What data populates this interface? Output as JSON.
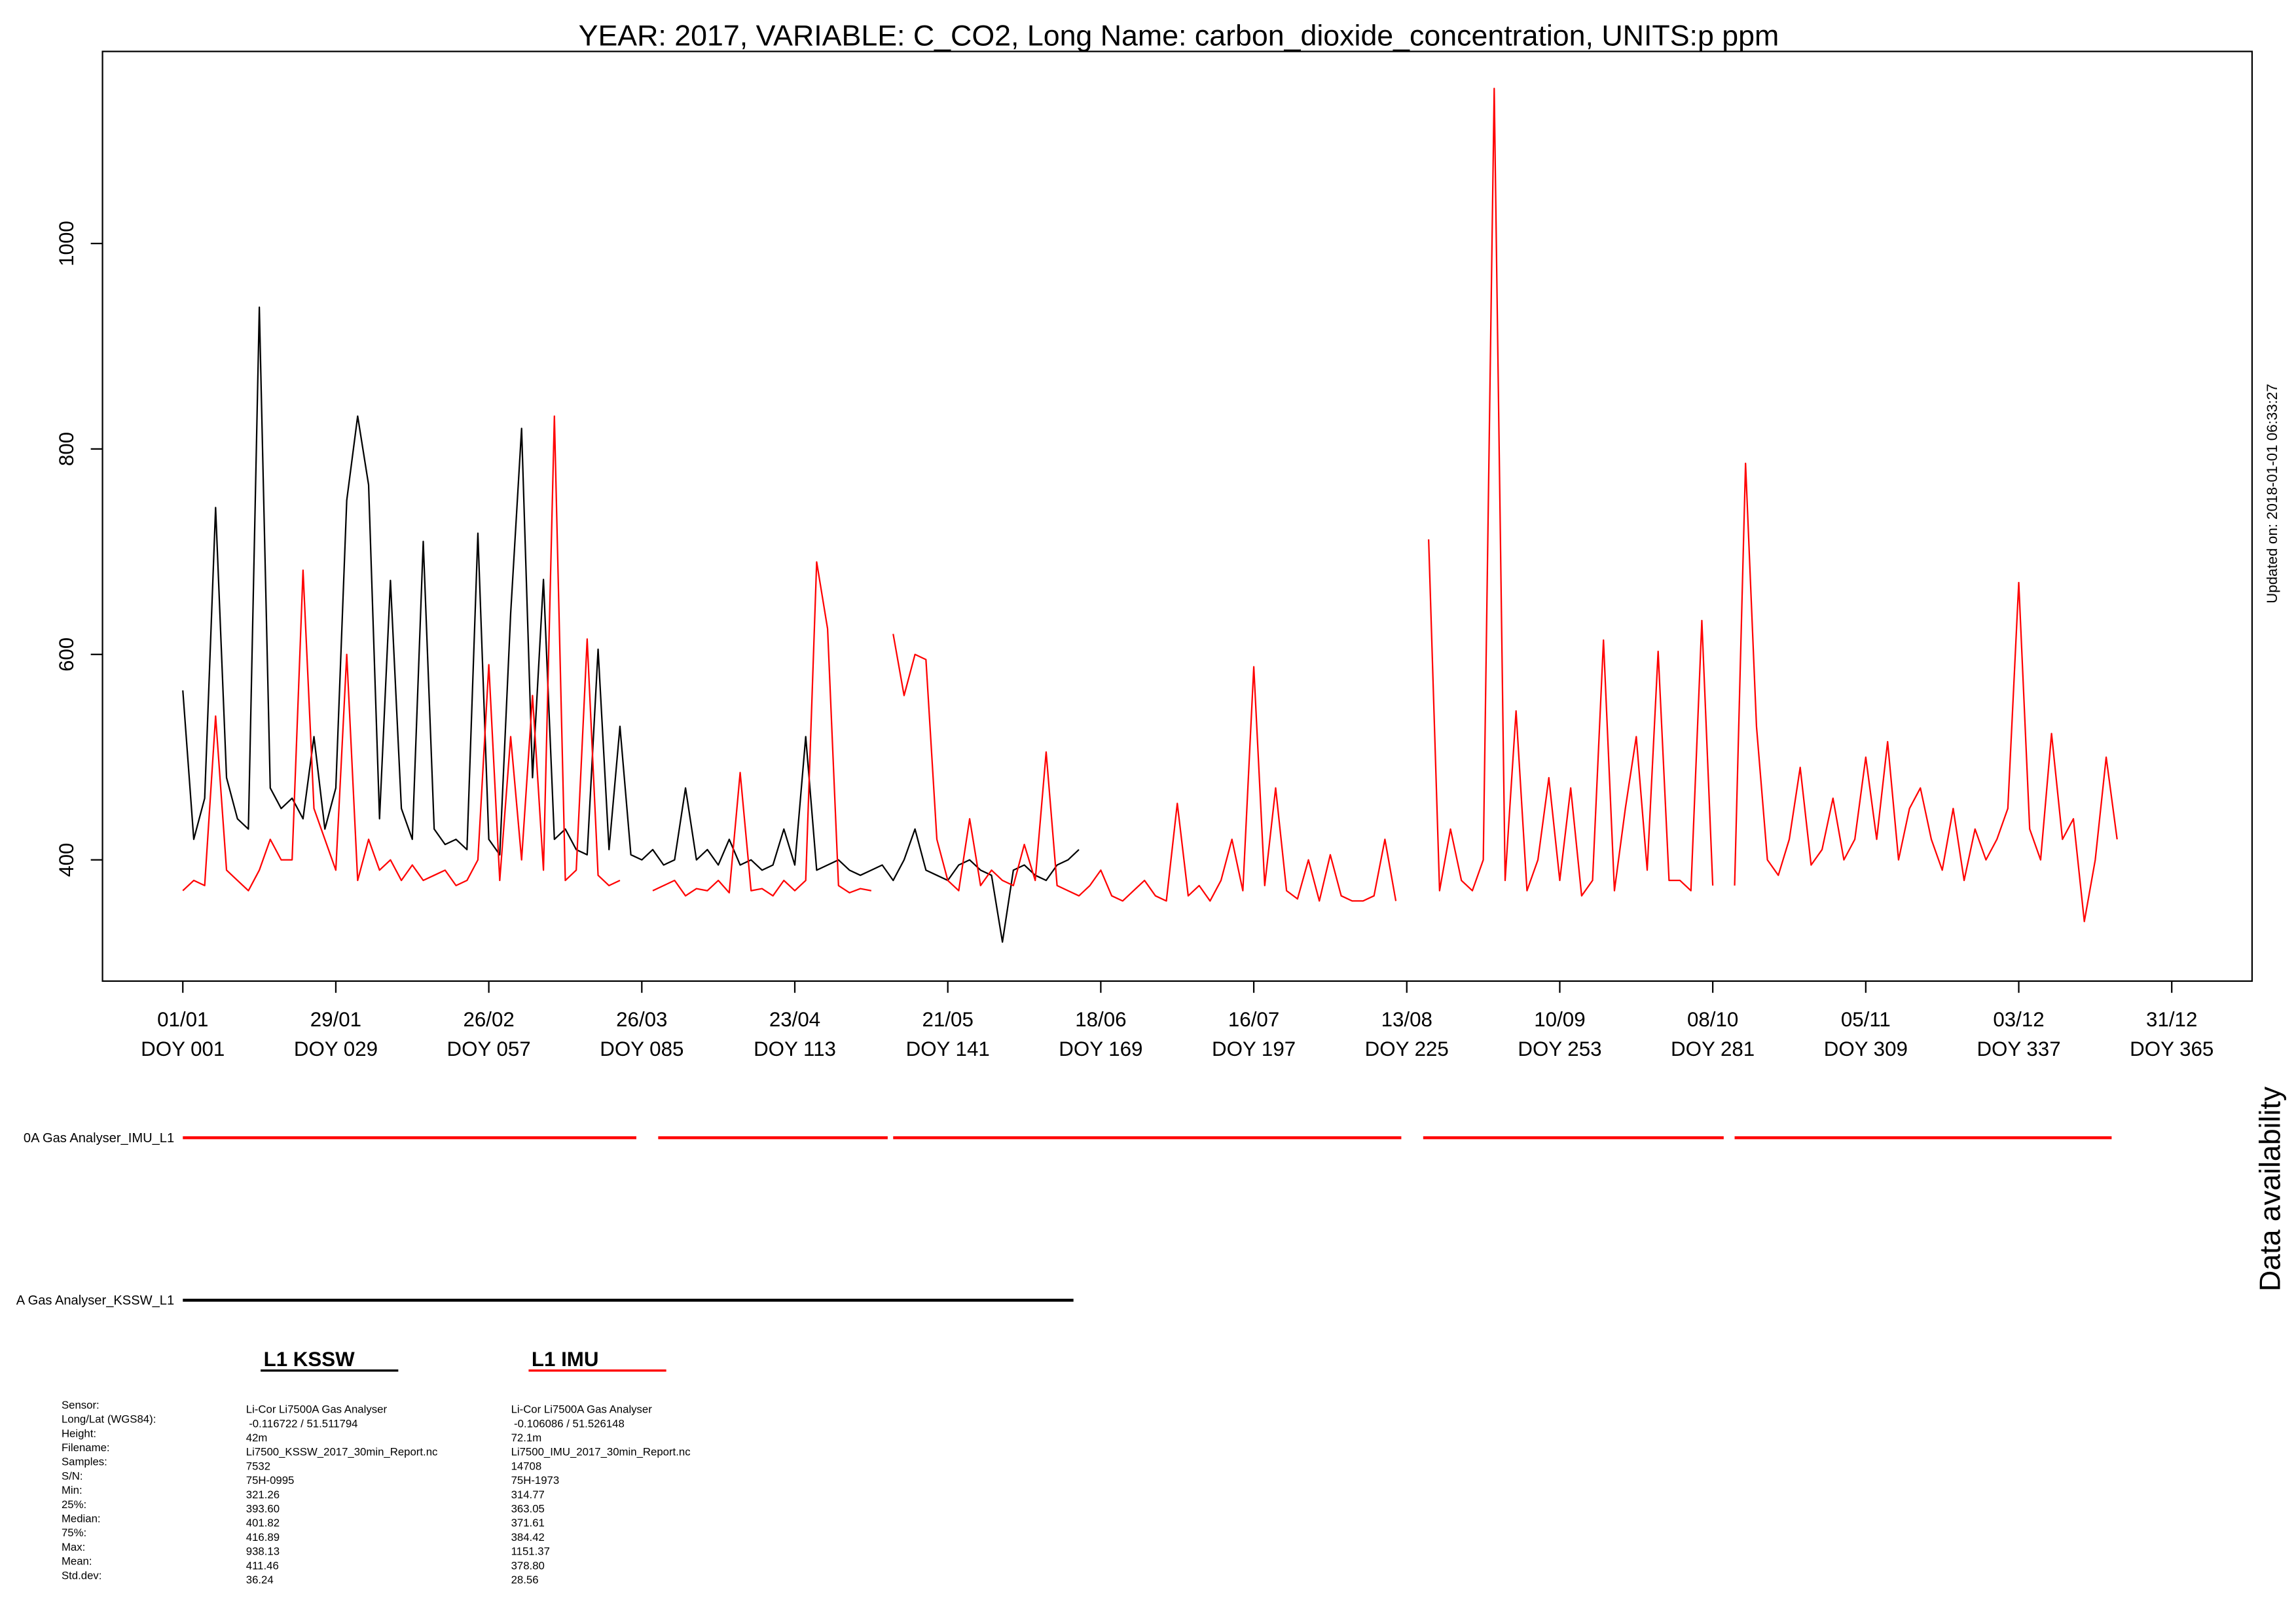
{
  "chart_data": {
    "type": "line",
    "title": "YEAR: 2017, VARIABLE: C_CO2, Long Name: carbon_dioxide_concentration, UNITS:p ppm",
    "updated": "Updated on: 2018-01-01 06:33:27",
    "xlim": [
      -13.7,
      379.7
    ],
    "ylim": [
      282,
      1187
    ],
    "yticks": [
      400,
      600,
      800,
      1000
    ],
    "xticks": [
      {
        "value": 1,
        "label": "01/01",
        "label2": "DOY 001"
      },
      {
        "value": 29,
        "label": "29/01",
        "label2": "DOY 029"
      },
      {
        "value": 57,
        "label": "26/02",
        "label2": "DOY 057"
      },
      {
        "value": 85,
        "label": "26/03",
        "label2": "DOY 085"
      },
      {
        "value": 113,
        "label": "23/04",
        "label2": "DOY 113"
      },
      {
        "value": 141,
        "label": "21/05",
        "label2": "DOY 141"
      },
      {
        "value": 169,
        "label": "18/06",
        "label2": "DOY 169"
      },
      {
        "value": 197,
        "label": "16/07",
        "label2": "DOY 197"
      },
      {
        "value": 225,
        "label": "13/08",
        "label2": "DOY 225"
      },
      {
        "value": 253,
        "label": "10/09",
        "label2": "DOY 253"
      },
      {
        "value": 281,
        "label": "08/10",
        "label2": "DOY 281"
      },
      {
        "value": 309,
        "label": "05/11",
        "label2": "DOY 309"
      },
      {
        "value": 337,
        "label": "03/12",
        "label2": "DOY 337"
      },
      {
        "value": 365,
        "label": "31/12",
        "label2": "DOY 365"
      }
    ],
    "series": [
      {
        "name": "L1 KSSW",
        "color": "#000000",
        "x": [
          1,
          3,
          5,
          7,
          9,
          11,
          13,
          15,
          17,
          19,
          21,
          23,
          25,
          27,
          29,
          31,
          33,
          35,
          37,
          39,
          41,
          43,
          45,
          47,
          49,
          51,
          53,
          55,
          57,
          59,
          61,
          63,
          65,
          67,
          69,
          71,
          73,
          75,
          77,
          79,
          81,
          83,
          85,
          87,
          89,
          91,
          93,
          95,
          97,
          99,
          101,
          103,
          105,
          107,
          109,
          111,
          113,
          115,
          117,
          119,
          121,
          123,
          125,
          127,
          129,
          131,
          133,
          135,
          137,
          139,
          141,
          143,
          145,
          147,
          149,
          151,
          153,
          155,
          157,
          159,
          161,
          163,
          165
        ],
        "values": [
          565,
          420,
          460,
          743,
          480,
          440,
          430,
          938,
          470,
          450,
          460,
          440,
          520,
          430,
          470,
          750,
          832,
          765,
          440,
          672,
          450,
          420,
          710,
          430,
          415,
          420,
          410,
          718,
          420,
          405,
          640,
          820,
          480,
          673,
          420,
          430,
          410,
          405,
          605,
          410,
          530,
          405,
          400,
          410,
          395,
          400,
          470,
          400,
          410,
          395,
          420,
          395,
          400,
          390,
          395,
          430,
          395,
          520,
          390,
          395,
          400,
          390,
          385,
          390,
          395,
          380,
          400,
          430,
          390,
          385,
          380,
          395,
          400,
          390,
          385,
          320,
          390,
          395,
          385,
          380,
          395,
          400,
          410
        ]
      },
      {
        "name": "L1 IMU",
        "color": "#ff0000",
        "x": [
          1,
          3,
          5,
          7,
          9,
          11,
          13,
          15,
          17,
          19,
          21,
          23,
          25,
          27,
          29,
          31,
          33,
          35,
          37,
          39,
          41,
          43,
          45,
          47,
          49,
          51,
          53,
          55,
          57,
          59,
          61,
          63,
          65,
          67,
          69,
          71,
          73,
          75,
          77,
          79,
          81,
          83,
          85,
          87,
          89,
          91,
          93,
          95,
          97,
          99,
          101,
          103,
          105,
          107,
          109,
          111,
          113,
          115,
          117,
          119,
          121,
          123,
          125,
          127,
          129,
          131,
          133,
          135,
          137,
          139,
          141,
          143,
          145,
          147,
          149,
          151,
          153,
          155,
          157,
          159,
          161,
          163,
          165,
          167,
          169,
          171,
          173,
          175,
          177,
          179,
          181,
          183,
          185,
          187,
          189,
          191,
          193,
          195,
          197,
          199,
          201,
          203,
          205,
          207,
          209,
          211,
          213,
          215,
          217,
          219,
          221,
          223,
          225,
          227,
          229,
          231,
          233,
          235,
          237,
          239,
          241,
          243,
          245,
          247,
          249,
          251,
          253,
          255,
          257,
          259,
          261,
          263,
          265,
          267,
          269,
          271,
          273,
          275,
          277,
          279,
          281,
          283,
          285,
          287,
          289,
          291,
          293,
          295,
          297,
          299,
          301,
          303,
          305,
          307,
          309,
          311,
          313,
          315,
          317,
          319,
          321,
          323,
          325,
          327,
          329,
          331,
          333,
          335,
          337,
          339,
          341,
          343,
          345,
          347,
          349,
          351,
          353,
          355
        ],
        "values": [
          370,
          380,
          375,
          540,
          390,
          380,
          370,
          390,
          420,
          400,
          400,
          682,
          450,
          420,
          390,
          600,
          380,
          420,
          390,
          400,
          380,
          395,
          380,
          385,
          390,
          375,
          380,
          400,
          590,
          380,
          520,
          400,
          560,
          390,
          832,
          380,
          390,
          615,
          385,
          375,
          380,
          null,
          null,
          370,
          375,
          380,
          365,
          372,
          370,
          380,
          368,
          485,
          370,
          372,
          365,
          380,
          370,
          380,
          690,
          625,
          375,
          368,
          372,
          370,
          null,
          620,
          560,
          600,
          595,
          420,
          380,
          370,
          440,
          375,
          390,
          380,
          375,
          415,
          380,
          505,
          375,
          370,
          365,
          375,
          390,
          365,
          360,
          370,
          380,
          365,
          360,
          455,
          365,
          375,
          360,
          380,
          420,
          370,
          588,
          375,
          470,
          370,
          362,
          400,
          360,
          405,
          365,
          360,
          360,
          365,
          420,
          360,
          null,
          null,
          712,
          370,
          430,
          380,
          370,
          400,
          1151,
          380,
          545,
          370,
          400,
          480,
          380,
          470,
          365,
          380,
          614,
          370,
          450,
          520,
          390,
          603,
          380,
          380,
          370,
          633,
          375,
          null,
          375,
          786,
          530,
          400,
          385,
          420,
          490,
          395,
          410,
          460,
          400,
          420,
          500,
          420,
          515,
          400,
          450,
          470,
          420,
          390,
          450,
          380,
          430,
          400,
          420,
          450,
          670,
          430,
          400,
          523,
          420,
          440,
          340,
          400,
          500,
          420
        ]
      }
    ],
    "availability_title": "Data availability",
    "availability": [
      {
        "label": "0A Gas Analyser_IMU_L1",
        "color": "#ff0000",
        "segments": [
          [
            1,
            84
          ],
          [
            88,
            130
          ],
          [
            131,
            224
          ],
          [
            228,
            283
          ],
          [
            285,
            354
          ]
        ]
      },
      {
        "label": "A Gas Analyser_KSSW_L1",
        "color": "#000000",
        "segments": [
          [
            1,
            164
          ]
        ]
      }
    ],
    "summary": {
      "row_labels": [
        "Sensor:",
        "Long/Lat (WGS84):",
        "Height:",
        "Filename:",
        "Samples:",
        "S/N:",
        "Min:",
        "25%:",
        "Median:",
        "75%:",
        "Max:",
        "Mean:",
        "Std.dev:"
      ],
      "columns": [
        {
          "header": "L1 KSSW",
          "color": "#000000",
          "values": [
            "Li-Cor Li7500A Gas Analyser",
            "-0.116722 / 51.511794",
            "42m",
            "Li7500_KSSW_2017_30min_Report.nc",
            "7532",
            "75H-0995",
            "321.26",
            "393.60",
            "401.82",
            "416.89",
            "938.13",
            "411.46",
            "36.24"
          ]
        },
        {
          "header": "L1 IMU",
          "color": "#ff0000",
          "values": [
            "Li-Cor Li7500A Gas Analyser",
            "-0.106086 / 51.526148",
            "72.1m",
            "Li7500_IMU_2017_30min_Report.nc",
            "14708",
            "75H-1973",
            "314.77",
            "363.05",
            "371.61",
            "384.42",
            "1151.37",
            "378.80",
            "28.56"
          ]
        }
      ]
    }
  }
}
